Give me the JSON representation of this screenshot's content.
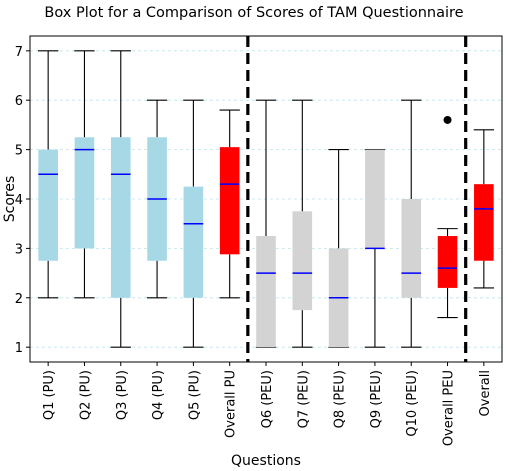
{
  "chart_data": {
    "type": "boxplot",
    "title": "Box Plot for a Comparison of Scores of TAM Questionnaire",
    "xlabel": "Questions",
    "ylabel": "Scores",
    "ylim": [
      0.7,
      7.3
    ],
    "yticks": [
      1,
      2,
      3,
      4,
      5,
      6,
      7
    ],
    "grid": "horizontal dashed",
    "median_color": "#0000ff",
    "separator_after": [
      "Overall PU",
      "Overall PEU"
    ],
    "boxes": [
      {
        "label": "Q1 (PU)",
        "whislo": 2,
        "q1": 2.75,
        "med": 4.5,
        "q3": 5,
        "whishi": 7,
        "fliers": [],
        "color": "#a7d8e6"
      },
      {
        "label": "Q2 (PU)",
        "whislo": 2,
        "q1": 3,
        "med": 5,
        "q3": 5.25,
        "whishi": 7,
        "fliers": [],
        "color": "#a7d8e6"
      },
      {
        "label": "Q3 (PU)",
        "whislo": 1,
        "q1": 2,
        "med": 4.5,
        "q3": 5.25,
        "whishi": 7,
        "fliers": [],
        "color": "#a7d8e6"
      },
      {
        "label": "Q4 (PU)",
        "whislo": 2,
        "q1": 2.75,
        "med": 4,
        "q3": 5.25,
        "whishi": 6,
        "fliers": [],
        "color": "#a7d8e6"
      },
      {
        "label": "Q5 (PU)",
        "whislo": 1,
        "q1": 2,
        "med": 3.5,
        "q3": 4.25,
        "whishi": 6,
        "fliers": [],
        "color": "#a7d8e6"
      },
      {
        "label": "Overall PU",
        "whislo": 2,
        "q1": 2.88,
        "med": 4.3,
        "q3": 5.05,
        "whishi": 5.8,
        "fliers": [],
        "color": "#ff0000"
      },
      {
        "label": "Q6 (PEU)",
        "whislo": 1,
        "q1": 1,
        "med": 2.5,
        "q3": 3.25,
        "whishi": 6,
        "fliers": [],
        "color": "#d3d3d3"
      },
      {
        "label": "Q7 (PEU)",
        "whislo": 1,
        "q1": 1.75,
        "med": 2.5,
        "q3": 3.75,
        "whishi": 6,
        "fliers": [],
        "color": "#d3d3d3"
      },
      {
        "label": "Q8 (PEU)",
        "whislo": 1,
        "q1": 1,
        "med": 2,
        "q3": 3,
        "whishi": 5,
        "fliers": [],
        "color": "#d3d3d3"
      },
      {
        "label": "Q9 (PEU)",
        "whislo": 1,
        "q1": 3,
        "med": 3,
        "q3": 5,
        "whishi": 5,
        "fliers": [],
        "color": "#d3d3d3"
      },
      {
        "label": "Q10 (PEU)",
        "whislo": 1,
        "q1": 2,
        "med": 2.5,
        "q3": 4,
        "whishi": 6,
        "fliers": [],
        "color": "#d3d3d3"
      },
      {
        "label": "Overall PEU",
        "whislo": 1.6,
        "q1": 2.2,
        "med": 2.6,
        "q3": 3.25,
        "whishi": 3.4,
        "fliers": [
          5.6
        ],
        "color": "#ff0000"
      },
      {
        "label": "Overall",
        "whislo": 2.2,
        "q1": 2.75,
        "med": 3.8,
        "q3": 4.3,
        "whishi": 5.4,
        "fliers": [],
        "color": "#ff0000"
      }
    ]
  }
}
